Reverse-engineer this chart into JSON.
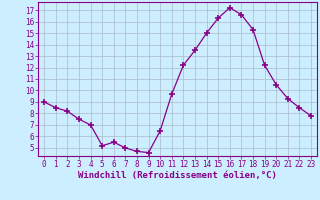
{
  "x": [
    0,
    1,
    2,
    3,
    4,
    5,
    6,
    7,
    8,
    9,
    10,
    11,
    12,
    13,
    14,
    15,
    16,
    17,
    18,
    19,
    20,
    21,
    22,
    23
  ],
  "y": [
    9.0,
    8.5,
    8.2,
    7.5,
    7.0,
    5.2,
    5.5,
    5.0,
    4.7,
    4.6,
    6.5,
    9.7,
    12.2,
    13.5,
    15.0,
    16.3,
    17.2,
    16.6,
    15.3,
    12.2,
    10.5,
    9.3,
    8.5,
    7.8
  ],
  "line_color": "#880088",
  "marker": "+",
  "marker_size": 4,
  "marker_lw": 1.2,
  "bg_color": "#cceeff",
  "grid_color": "#aabbcc",
  "xlabel": "Windchill (Refroidissement éolien,°C)",
  "xlabel_color": "#880088",
  "tick_color": "#880088",
  "spine_color": "#880088",
  "ylim": [
    4.3,
    17.7
  ],
  "xlim": [
    -0.5,
    23.5
  ],
  "yticks": [
    5,
    6,
    7,
    8,
    9,
    10,
    11,
    12,
    13,
    14,
    15,
    16,
    17
  ],
  "xticks": [
    0,
    1,
    2,
    3,
    4,
    5,
    6,
    7,
    8,
    9,
    10,
    11,
    12,
    13,
    14,
    15,
    16,
    17,
    18,
    19,
    20,
    21,
    22,
    23
  ],
  "tick_fontsize": 5.5,
  "xlabel_fontsize": 6.5
}
